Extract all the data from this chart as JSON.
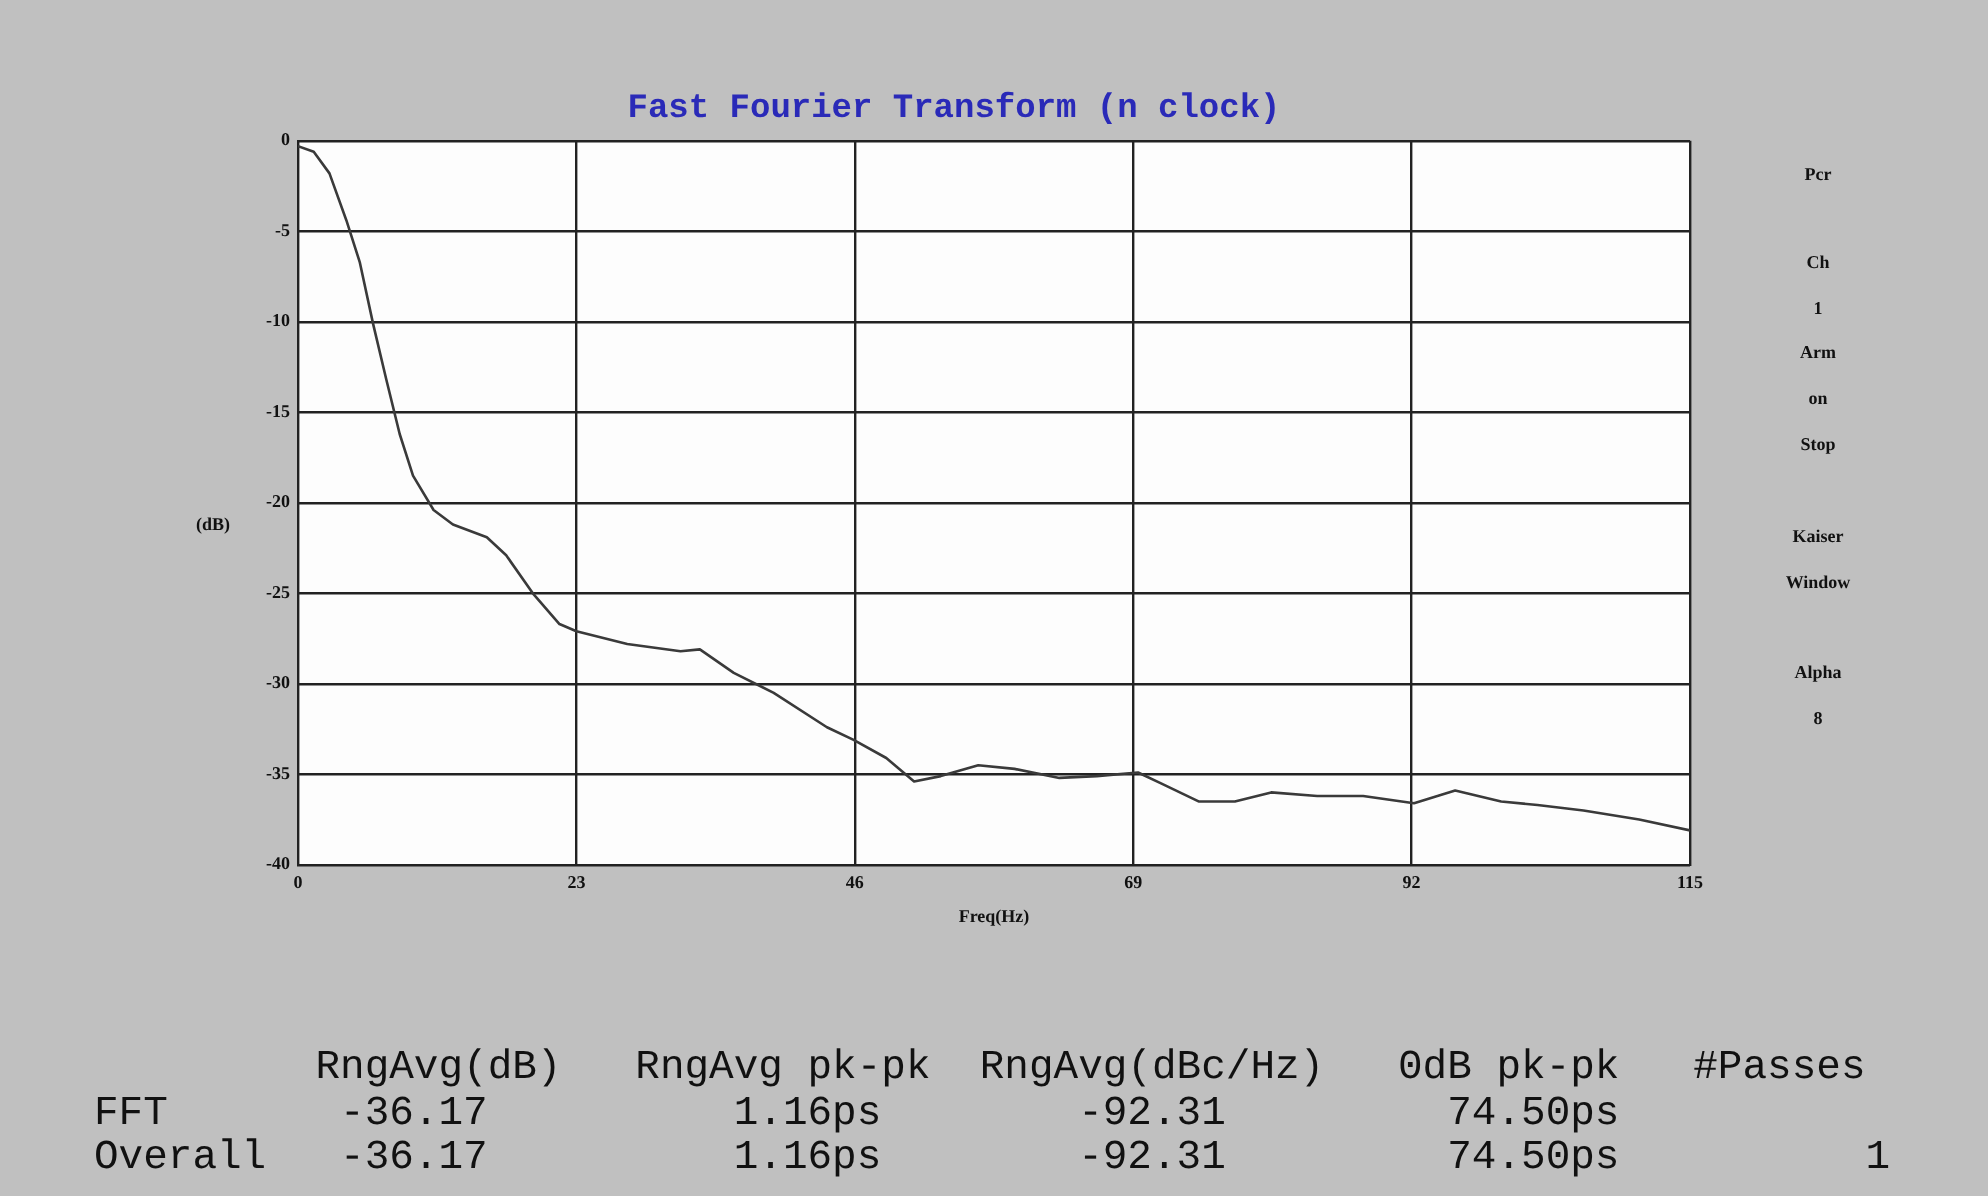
{
  "chart_data": {
    "type": "line",
    "title": "Fast Fourier Transform (n clock)",
    "xlabel": "Freq(Hz)",
    "ylabel": "(dB)",
    "x": [
      0,
      1.3,
      2.6,
      4.0,
      5.1,
      6.2,
      7.3,
      8.4,
      9.5,
      11.2,
      12.8,
      15.6,
      17.2,
      19.4,
      21.6,
      23,
      27.2,
      31.6,
      33.2,
      36,
      39.3,
      43.7,
      45.9,
      48.6,
      50.9,
      53.1,
      56.2,
      59.2,
      62.9,
      66,
      69.4,
      71.3,
      74.4,
      77.4,
      80.4,
      84.2,
      88,
      92.2,
      95.6,
      99.4,
      102.4,
      106.2,
      110.8,
      115
    ],
    "series": [
      {
        "color": "#3a3a3a",
        "values": [
          -0.3,
          -0.6,
          -1.8,
          -4.4,
          -6.7,
          -10.1,
          -13.2,
          -16.2,
          -18.5,
          -20.4,
          -21.2,
          -21.9,
          -22.9,
          -25.0,
          -26.7,
          -27.1,
          -27.8,
          -28.2,
          -28.1,
          -29.4,
          -30.5,
          -32.4,
          -33.1,
          -34.1,
          -35.4,
          -35.1,
          -34.5,
          -34.7,
          -35.2,
          -35.1,
          -34.9,
          -35.5,
          -36.5,
          -36.5,
          -36.0,
          -36.2,
          -36.2,
          -36.6,
          -35.9,
          -36.5,
          -36.7,
          -37.0,
          -37.5,
          -38.1
        ]
      }
    ],
    "xlim": [
      0,
      115
    ],
    "xticks": [
      0,
      23,
      46,
      69,
      92,
      115
    ],
    "ylim": [
      -40,
      0
    ],
    "yticks": [
      0,
      -5,
      -10,
      -15,
      -20,
      -25,
      -30,
      -35,
      -40
    ],
    "grid": true,
    "legend": false,
    "marker": "none",
    "line_style": "solid",
    "annotations": [
      "Pcr",
      "Ch 1",
      "Arm on Stop",
      "Kaiser Window",
      "Alpha 8",
      "         RngAvg(dB)   RngAvg pk-pk  RngAvg(dBc/Hz)   0dB pk-pk   #Passes",
      "FFT       -36.17          1.16ps        -92.31         74.50ps",
      "Overall   -36.17          1.16ps        -92.31         74.50ps          1"
    ]
  }
}
